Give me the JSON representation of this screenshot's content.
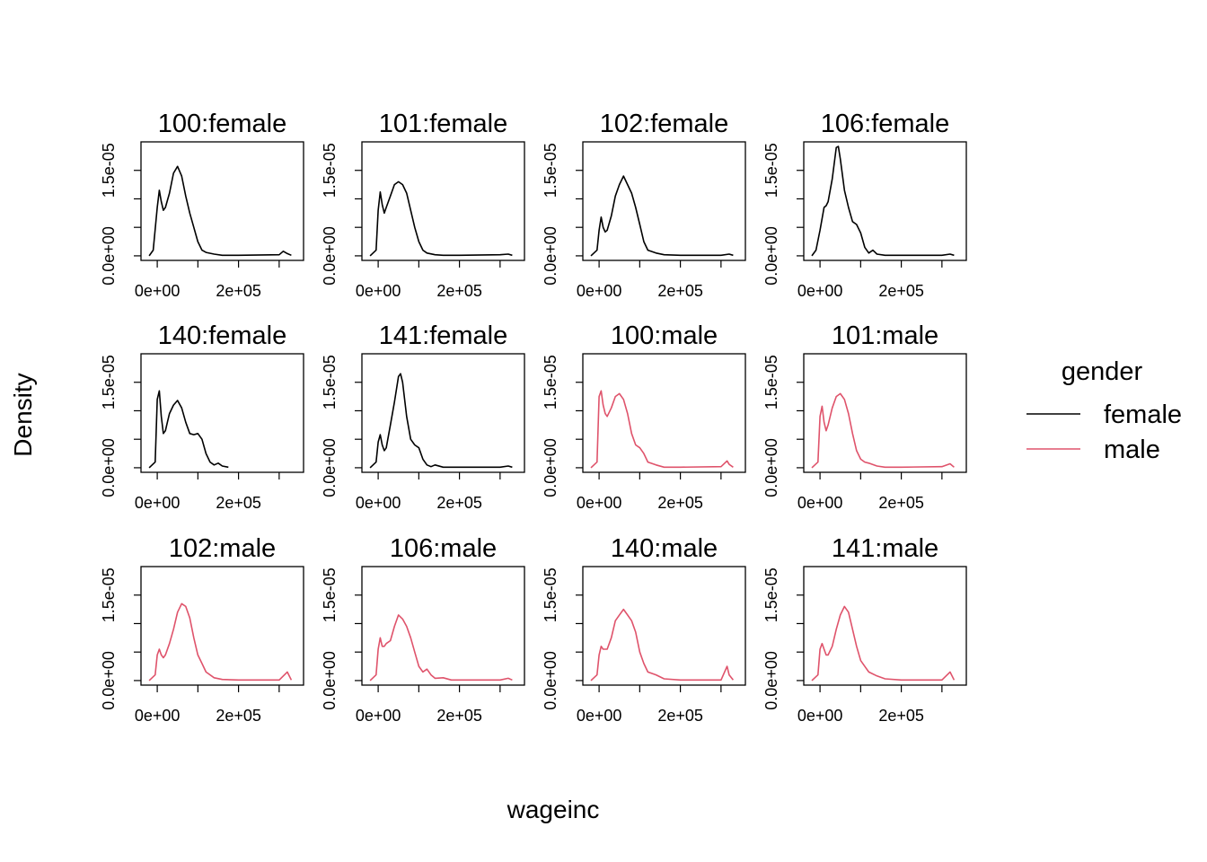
{
  "chart_data": {
    "type": "line",
    "xlabel": "wageinc",
    "ylabel": "Density",
    "x_ticks": [
      "0e+00",
      "2e+05"
    ],
    "y_ticks": [
      "0.0e+00",
      "1.5e-05"
    ],
    "xlim": [
      -40000,
      360000
    ],
    "ylim": [
      -8e-07,
      2e-05
    ],
    "legend": {
      "title": "gender",
      "position": "right",
      "entries": [
        {
          "label": "female",
          "color": "#000000"
        },
        {
          "label": "male",
          "color": "#DF536B"
        }
      ]
    },
    "panels": [
      {
        "title": "100:female",
        "color": "#000000",
        "x": [
          -20000,
          -10000,
          0,
          5000,
          10000,
          15000,
          20000,
          30000,
          40000,
          50000,
          60000,
          70000,
          80000,
          90000,
          100000,
          110000,
          120000,
          140000,
          160000,
          200000,
          300000,
          310000,
          320000,
          330000
        ],
        "y": [
          0.0,
          1e-06,
          8.5e-06,
          1.15e-05,
          9.5e-06,
          8e-06,
          8.5e-06,
          1.1e-05,
          1.45e-05,
          1.57e-05,
          1.4e-05,
          1.05e-05,
          7.5e-06,
          5e-06,
          2.5e-06,
          1e-06,
          6e-07,
          3e-07,
          1e-07,
          1e-07,
          2e-07,
          8e-07,
          4e-07,
          1e-07
        ]
      },
      {
        "title": "101:female",
        "color": "#000000",
        "x": [
          -20000,
          -5000,
          0,
          5000,
          10000,
          15000,
          20000,
          30000,
          40000,
          50000,
          60000,
          70000,
          80000,
          90000,
          100000,
          110000,
          120000,
          140000,
          160000,
          200000,
          300000,
          320000,
          330000
        ],
        "y": [
          0.0,
          1e-06,
          8e-06,
          1.12e-05,
          9e-06,
          7.5e-06,
          8.5e-06,
          1.05e-05,
          1.25e-05,
          1.3e-05,
          1.25e-05,
          1.1e-05,
          8e-06,
          5e-06,
          2.5e-06,
          1e-06,
          5e-07,
          2e-07,
          1e-07,
          1e-07,
          2e-07,
          3e-07,
          1e-07
        ]
      },
      {
        "title": "102:female",
        "color": "#000000",
        "x": [
          -20000,
          -5000,
          0,
          5000,
          10000,
          15000,
          20000,
          30000,
          40000,
          50000,
          60000,
          70000,
          80000,
          90000,
          100000,
          110000,
          120000,
          140000,
          160000,
          200000,
          300000,
          320000,
          330000
        ],
        "y": [
          0.0,
          1e-06,
          4.5e-06,
          6.8e-06,
          5e-06,
          4.2e-06,
          4.5e-06,
          7e-06,
          1.05e-05,
          1.25e-05,
          1.4e-05,
          1.25e-05,
          1.1e-05,
          8.5e-06,
          5.5e-06,
          2.5e-06,
          1e-06,
          5e-07,
          2e-07,
          1e-07,
          1e-07,
          3e-07,
          1e-07
        ]
      },
      {
        "title": "106:female",
        "color": "#000000",
        "x": [
          -20000,
          -10000,
          0,
          10000,
          15000,
          20000,
          30000,
          40000,
          45000,
          50000,
          60000,
          70000,
          80000,
          90000,
          100000,
          110000,
          120000,
          130000,
          140000,
          160000,
          200000,
          300000,
          320000,
          330000
        ],
        "y": [
          0.0,
          1e-06,
          4.5e-06,
          8.5e-06,
          8.8e-06,
          9.5e-06,
          1.35e-05,
          1.9e-05,
          1.92e-05,
          1.7e-05,
          1.15e-05,
          8.5e-06,
          6e-06,
          5.5e-06,
          4e-06,
          1.5e-06,
          5e-07,
          1e-06,
          3e-07,
          1e-07,
          1e-07,
          1e-07,
          3e-07,
          1e-07
        ]
      },
      {
        "title": "140:female",
        "color": "#000000",
        "x": [
          -20000,
          -5000,
          0,
          5000,
          10000,
          15000,
          20000,
          25000,
          30000,
          40000,
          50000,
          60000,
          70000,
          80000,
          90000,
          100000,
          110000,
          120000,
          130000,
          140000,
          150000,
          160000,
          175000
        ],
        "y": [
          0.0,
          1e-06,
          1.2e-05,
          1.35e-05,
          9e-06,
          6e-06,
          6.5e-06,
          8e-06,
          9.5e-06,
          1.1e-05,
          1.18e-05,
          1.05e-05,
          8e-06,
          6e-06,
          5.8e-06,
          6e-06,
          5e-06,
          2.5e-06,
          1e-06,
          5e-07,
          8e-07,
          3e-07,
          1e-07
        ]
      },
      {
        "title": "141:female",
        "color": "#000000",
        "x": [
          -20000,
          -5000,
          0,
          5000,
          10000,
          15000,
          20000,
          30000,
          40000,
          50000,
          55000,
          60000,
          70000,
          80000,
          90000,
          100000,
          110000,
          120000,
          130000,
          140000,
          160000,
          200000,
          300000,
          320000,
          330000
        ],
        "y": [
          0.0,
          1e-06,
          4.5e-06,
          5.8e-06,
          4e-06,
          3e-06,
          3.5e-06,
          7.5e-06,
          1.15e-05,
          1.6e-05,
          1.65e-05,
          1.5e-05,
          9e-06,
          5e-06,
          4e-06,
          3.5e-06,
          1.5e-06,
          5e-07,
          2e-07,
          5e-07,
          1e-07,
          1e-07,
          1e-07,
          3e-07,
          1e-07
        ]
      },
      {
        "title": "100:male",
        "color": "#DF536B",
        "x": [
          -20000,
          -5000,
          0,
          5000,
          10000,
          15000,
          20000,
          30000,
          40000,
          50000,
          60000,
          70000,
          80000,
          90000,
          100000,
          110000,
          120000,
          140000,
          160000,
          200000,
          300000,
          315000,
          320000,
          330000
        ],
        "y": [
          0.0,
          1e-06,
          1.25e-05,
          1.35e-05,
          1.1e-05,
          9.5e-06,
          9e-06,
          1.05e-05,
          1.25e-05,
          1.3e-05,
          1.2e-05,
          9.5e-06,
          6e-06,
          4e-06,
          3.5e-06,
          2.5e-06,
          1e-06,
          5e-07,
          1e-07,
          1e-07,
          2e-07,
          1.2e-06,
          6e-07,
          1e-07
        ]
      },
      {
        "title": "101:male",
        "color": "#DF536B",
        "x": [
          -20000,
          -5000,
          0,
          5000,
          10000,
          15000,
          20000,
          30000,
          40000,
          50000,
          60000,
          70000,
          80000,
          90000,
          100000,
          110000,
          120000,
          140000,
          160000,
          200000,
          300000,
          320000,
          330000
        ],
        "y": [
          0.0,
          1e-06,
          9e-06,
          1.08e-05,
          8e-06,
          6.5e-06,
          7.5e-06,
          1.05e-05,
          1.25e-05,
          1.3e-05,
          1.2e-05,
          9.5e-06,
          6e-06,
          3e-06,
          1.5e-06,
          1e-06,
          8e-07,
          3e-07,
          1e-07,
          1e-07,
          2e-07,
          7e-07,
          1e-07
        ]
      },
      {
        "title": "102:male",
        "color": "#DF536B",
        "x": [
          -20000,
          -5000,
          0,
          5000,
          10000,
          15000,
          20000,
          30000,
          40000,
          50000,
          60000,
          70000,
          80000,
          90000,
          100000,
          110000,
          120000,
          140000,
          160000,
          200000,
          300000,
          320000,
          330000
        ],
        "y": [
          0.0,
          1e-06,
          4.5e-06,
          5.5e-06,
          4.5e-06,
          4e-06,
          4.5e-06,
          6.5e-06,
          9e-06,
          1.2e-05,
          1.35e-05,
          1.3e-05,
          1.1e-05,
          7.5e-06,
          4.5e-06,
          3e-06,
          1.5e-06,
          5e-07,
          2e-07,
          1e-07,
          1e-07,
          1.5e-06,
          1e-07
        ]
      },
      {
        "title": "106:male",
        "color": "#DF536B",
        "x": [
          -20000,
          -5000,
          0,
          5000,
          10000,
          15000,
          20000,
          30000,
          40000,
          50000,
          60000,
          70000,
          80000,
          90000,
          100000,
          110000,
          120000,
          130000,
          140000,
          160000,
          180000,
          200000,
          300000,
          320000,
          330000
        ],
        "y": [
          0.0,
          1e-06,
          5.5e-06,
          7.5e-06,
          6e-06,
          6e-06,
          6.5e-06,
          7e-06,
          9.5e-06,
          1.15e-05,
          1.08e-05,
          9.5e-06,
          7.5e-06,
          5e-06,
          2.5e-06,
          1.5e-06,
          2e-06,
          1e-06,
          4e-07,
          5e-07,
          1e-07,
          1e-07,
          1e-07,
          4e-07,
          1e-07
        ]
      },
      {
        "title": "140:male",
        "color": "#DF536B",
        "x": [
          -20000,
          -5000,
          0,
          5000,
          10000,
          15000,
          20000,
          30000,
          40000,
          50000,
          60000,
          70000,
          80000,
          90000,
          100000,
          110000,
          120000,
          140000,
          160000,
          200000,
          300000,
          315000,
          320000,
          330000
        ],
        "y": [
          0.0,
          1e-06,
          4.5e-06,
          6e-06,
          5.5e-06,
          5.5e-06,
          5.5e-06,
          7.5e-06,
          1.05e-05,
          1.15e-05,
          1.25e-05,
          1.15e-05,
          1.05e-05,
          8.5e-06,
          5e-06,
          3e-06,
          1.5e-06,
          1e-06,
          3e-07,
          1e-07,
          1e-07,
          2.5e-06,
          1e-06,
          1e-07
        ]
      },
      {
        "title": "141:male",
        "color": "#DF536B",
        "x": [
          -20000,
          -5000,
          0,
          5000,
          10000,
          15000,
          20000,
          30000,
          40000,
          50000,
          60000,
          70000,
          80000,
          90000,
          100000,
          110000,
          120000,
          140000,
          160000,
          200000,
          300000,
          320000,
          330000
        ],
        "y": [
          0.0,
          1e-06,
          5.5e-06,
          6.5e-06,
          5.5e-06,
          4.5e-06,
          4.5e-06,
          6e-06,
          9e-06,
          1.15e-05,
          1.3e-05,
          1.2e-05,
          9e-06,
          6e-06,
          3.5e-06,
          2.5e-06,
          1.5e-06,
          8e-07,
          3e-07,
          1e-07,
          1e-07,
          1.5e-06,
          1e-07
        ]
      }
    ]
  }
}
